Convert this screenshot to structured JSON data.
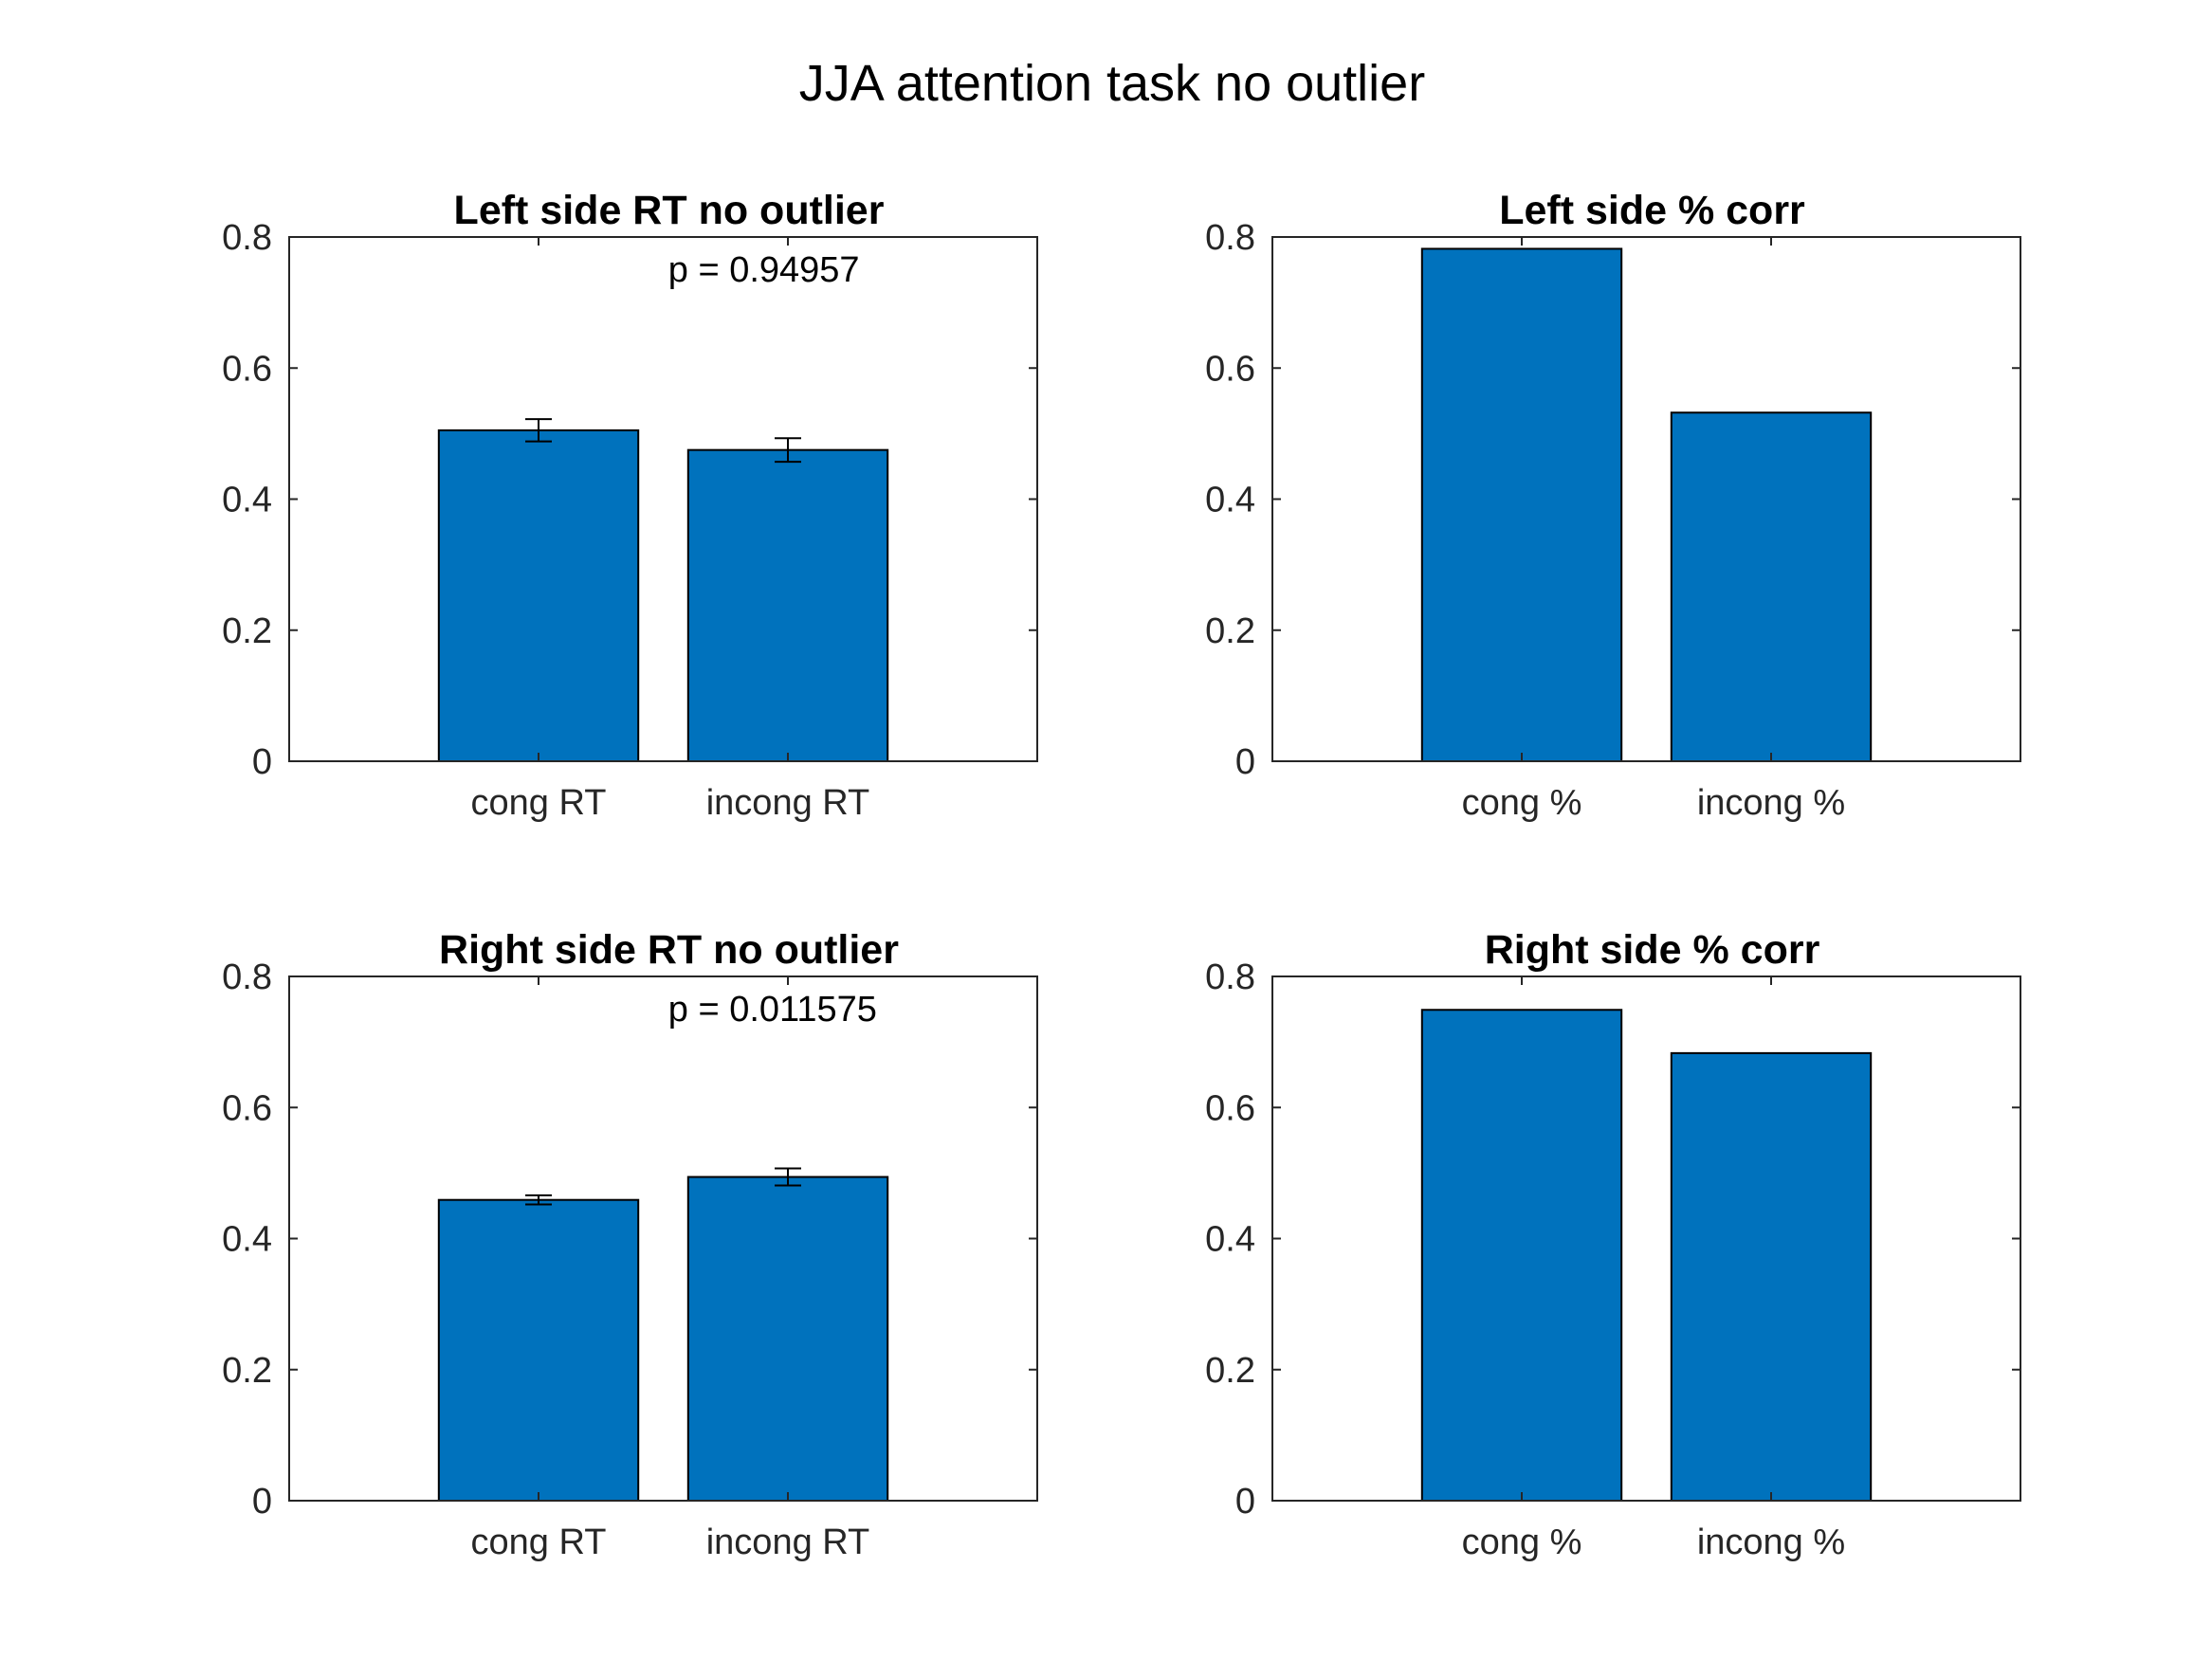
{
  "figure": {
    "title": "JJA attention task no outlier"
  },
  "chart_data": [
    {
      "type": "bar",
      "title": "Left side RT no outlier",
      "categories": [
        "cong RT",
        "incong RT"
      ],
      "values": [
        0.505,
        0.475
      ],
      "errors": [
        0.017,
        0.018
      ],
      "ylim": [
        0,
        0.8
      ],
      "yticks": [
        "0",
        "0.2",
        "0.4",
        "0.6",
        "0.8"
      ],
      "annotation": "p = 0.94957",
      "bar_color": "#0072BD",
      "grid": false
    },
    {
      "type": "bar",
      "title": "Left side % corr",
      "categories": [
        "cong %",
        "incong %"
      ],
      "values": [
        0.782,
        0.532
      ],
      "ylim": [
        0,
        0.8
      ],
      "yticks": [
        "0",
        "0.2",
        "0.4",
        "0.6",
        "0.8"
      ],
      "bar_color": "#0072BD",
      "grid": false
    },
    {
      "type": "bar",
      "title": "Right side RT no outlier",
      "categories": [
        "cong RT",
        "incong RT"
      ],
      "values": [
        0.459,
        0.494
      ],
      "errors": [
        0.007,
        0.013
      ],
      "ylim": [
        0,
        0.8
      ],
      "yticks": [
        "0",
        "0.2",
        "0.4",
        "0.6",
        "0.8"
      ],
      "annotation": "p = 0.011575",
      "bar_color": "#0072BD",
      "grid": false
    },
    {
      "type": "bar",
      "title": "Right side % corr",
      "categories": [
        "cong %",
        "incong %"
      ],
      "values": [
        0.749,
        0.683
      ],
      "ylim": [
        0,
        0.8
      ],
      "yticks": [
        "0",
        "0.2",
        "0.4",
        "0.6",
        "0.8"
      ],
      "bar_color": "#0072BD",
      "grid": false
    }
  ]
}
